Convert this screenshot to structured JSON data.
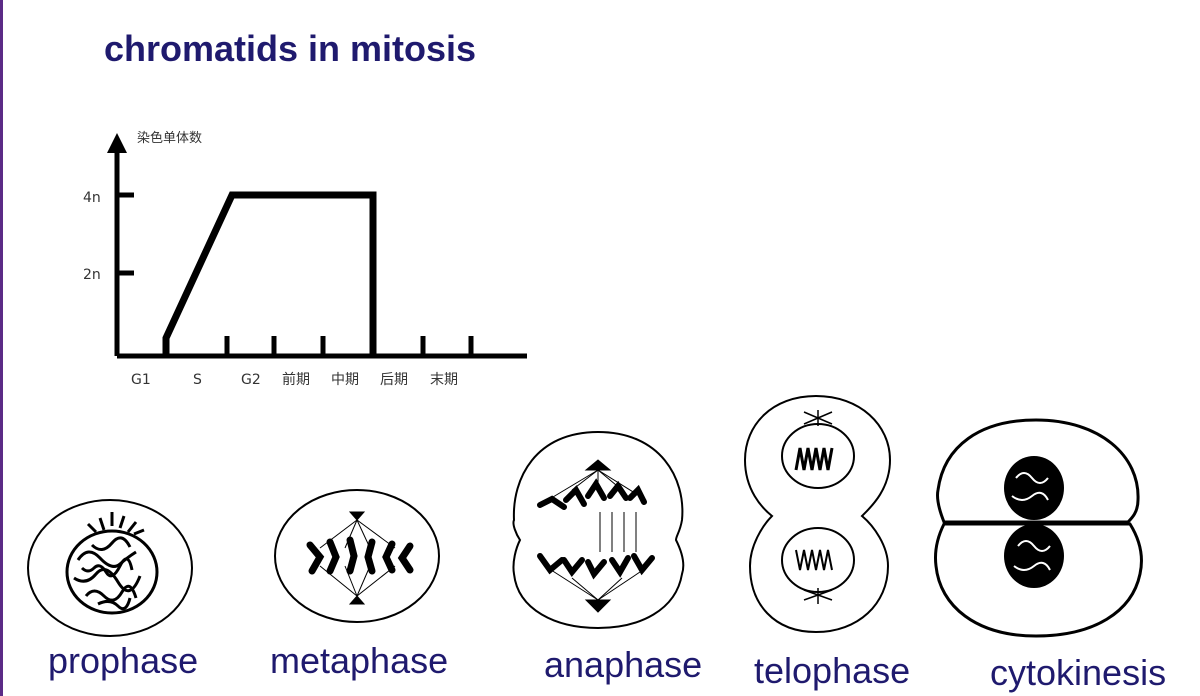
{
  "title": "chromatids in mitosis",
  "graph": {
    "y_axis_label": "染色单体数",
    "y_ticks": [
      "4n",
      "2n"
    ],
    "x_ticks": [
      "G1",
      "S",
      "G2",
      "前期",
      "中期",
      "后期",
      "末期"
    ]
  },
  "chart_data": {
    "type": "line",
    "x": [
      "G1",
      "S",
      "G2",
      "前期",
      "中期",
      "后期",
      "末期"
    ],
    "ylabel": "染色单体数",
    "yticks": [
      "2n",
      "4n"
    ],
    "series": [
      {
        "values": [
          0,
          4,
          4,
          4,
          4,
          0,
          0
        ]
      }
    ]
  },
  "phases": [
    {
      "id": "prophase",
      "label": "prophase"
    },
    {
      "id": "metaphase",
      "label": "metaphase"
    },
    {
      "id": "anaphase",
      "label": "anaphase"
    },
    {
      "id": "telophase",
      "label": "telophase"
    },
    {
      "id": "cytokinesis",
      "label": "cytokinesis"
    }
  ],
  "colors": {
    "accent": "#1f1a6e",
    "rule": "#5b2a86",
    "ink": "#000000"
  }
}
